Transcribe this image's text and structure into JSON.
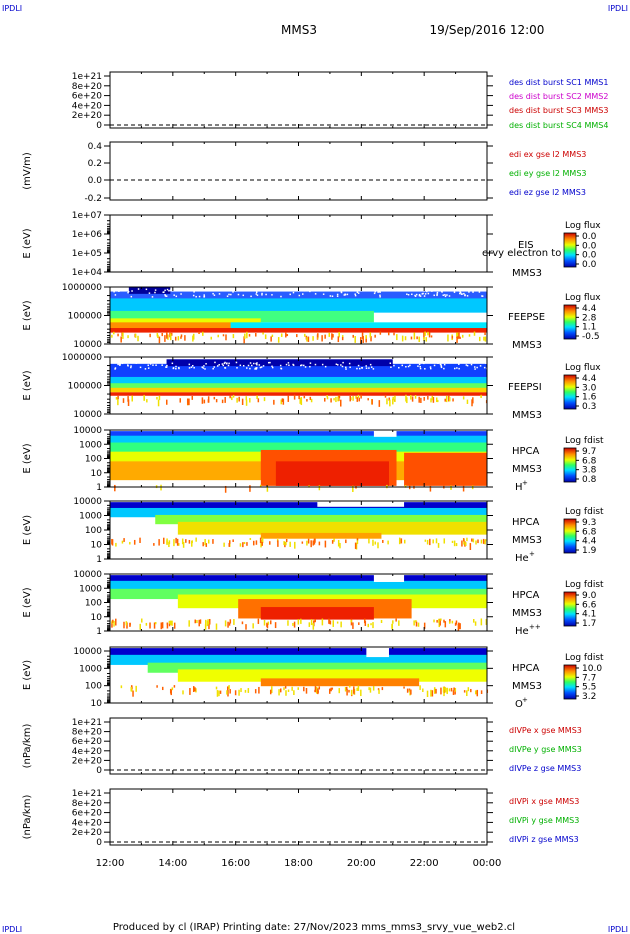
{
  "corners": {
    "tl": "IPDLI",
    "tr": "IPDLI",
    "bl": "IPDLI",
    "br": "IPDLI"
  },
  "header": {
    "mission": "MMS3",
    "datetime": "19/Sep/2016 12:00"
  },
  "footer": "Produced by cl (IRAP)   Printing date: 27/Nov/2023   mms_mms3_srvy_vue_web2.cl",
  "colors": {
    "red": "#cc0000",
    "green": "#00b000",
    "blue": "#0000cc",
    "magenta": "#cc00cc"
  },
  "chart_data": [
    {
      "type": "line",
      "panel": "des-dist",
      "ylabel": "",
      "ytick_labels": [
        "1e+21",
        "8e+20",
        "6e+20",
        "4e+20",
        "2e+20",
        "0"
      ],
      "ylim": [
        0,
        1.1e+21
      ],
      "legend": [
        {
          "text": "des dist burst SC1 MMS1",
          "color": "#0000cc"
        },
        {
          "text": "des dist burst SC2 MMS2",
          "color": "#cc00cc"
        },
        {
          "text": "des dist burst SC3 MMS3",
          "color": "#cc0000"
        },
        {
          "text": "des dist burst SC4 MMS4",
          "color": "#00b000"
        }
      ],
      "series": []
    },
    {
      "type": "line",
      "panel": "edi",
      "ylabel": "(mV/m)",
      "ytick_labels": [
        "0.4",
        "0.2",
        "0.0",
        "-0.2"
      ],
      "ylim": [
        -0.2,
        0.4
      ],
      "legend": [
        {
          "text": "edi ex gse l2 MMS3",
          "color": "#cc0000"
        },
        {
          "text": "edi ey gse l2 MMS3",
          "color": "#00b000"
        },
        {
          "text": "edi ez gse l2 MMS3",
          "color": "#0000cc"
        }
      ],
      "series": []
    },
    {
      "type": "heatmap",
      "panel": "eis",
      "ylabel": "E (eV)",
      "ytick_labels": [
        "1e+07",
        "1e+06",
        "1e+05",
        "1e+04"
      ],
      "yscale": "log",
      "instrument": "EIS",
      "sublabel": "MMS3",
      "overlay_text": "ervy electron to",
      "colorbar_title": "Log flux",
      "colorbar_ticks": [
        "0.0",
        "0.0",
        "0.0",
        "0.0"
      ],
      "fill": "empty"
    },
    {
      "type": "heatmap",
      "panel": "feeps-e",
      "ylabel": "E (eV)",
      "ytick_labels": [
        "1000000",
        "100000",
        "10000"
      ],
      "yscale": "log",
      "instrument": "FEEPSE",
      "sublabel": "MMS3",
      "colorbar_title": "Log flux",
      "colorbar_ticks": [
        "4.4",
        "2.8",
        "1.1",
        "-0.5"
      ],
      "fill": "feeps_e"
    },
    {
      "type": "heatmap",
      "panel": "feeps-i",
      "ylabel": "E (eV)",
      "ytick_labels": [
        "1000000",
        "100000",
        "10000"
      ],
      "yscale": "log",
      "instrument": "FEEPSI",
      "sublabel": "MMS3",
      "colorbar_title": "Log flux",
      "colorbar_ticks": [
        "4.4",
        "3.0",
        "1.6",
        "0.3"
      ],
      "fill": "feeps_i"
    },
    {
      "type": "heatmap",
      "panel": "hpca-h",
      "ylabel": "E (eV)",
      "ytick_labels": [
        "10000",
        "1000",
        "100",
        "10",
        "1"
      ],
      "yscale": "log",
      "instrument": "HPCA",
      "sublabel": "MMS3",
      "species": "H",
      "species_sup": "+",
      "colorbar_title": "Log fdist",
      "colorbar_ticks": [
        "9.7",
        "6.8",
        "3.8",
        "0.8"
      ],
      "fill": "hpca_h"
    },
    {
      "type": "heatmap",
      "panel": "hpca-he",
      "ylabel": "E (eV)",
      "ytick_labels": [
        "10000",
        "1000",
        "100",
        "10",
        "1"
      ],
      "yscale": "log",
      "instrument": "HPCA",
      "sublabel": "MMS3",
      "species": "He",
      "species_sup": "+",
      "colorbar_title": "Log fdist",
      "colorbar_ticks": [
        "9.3",
        "6.8",
        "4.4",
        "1.9"
      ],
      "fill": "hpca_he"
    },
    {
      "type": "heatmap",
      "panel": "hpca-hepp",
      "ylabel": "E (eV)",
      "ytick_labels": [
        "10000",
        "1000",
        "100",
        "10",
        "1"
      ],
      "yscale": "log",
      "instrument": "HPCA",
      "sublabel": "MMS3",
      "species": "He",
      "species_sup": "++",
      "colorbar_title": "Log fdist",
      "colorbar_ticks": [
        "9.0",
        "6.6",
        "4.1",
        "1.7"
      ],
      "fill": "hpca_hepp"
    },
    {
      "type": "heatmap",
      "panel": "hpca-o",
      "ylabel": "E (eV)",
      "ytick_labels": [
        "10000",
        "1000",
        "100",
        "10"
      ],
      "yscale": "log",
      "instrument": "HPCA",
      "sublabel": "MMS3",
      "species": "O",
      "species_sup": "+",
      "colorbar_title": "Log fdist",
      "colorbar_ticks": [
        "10.0",
        "7.7",
        "5.5",
        "3.2"
      ],
      "fill": "hpca_o"
    },
    {
      "type": "line",
      "panel": "divpe",
      "ylabel": "(nPa/km)",
      "ytick_labels": [
        "1e+21",
        "8e+20",
        "6e+20",
        "4e+20",
        "2e+20",
        "0"
      ],
      "ylim": [
        0,
        1.1e+21
      ],
      "legend": [
        {
          "text": "dIVPe x gse MMS3",
          "color": "#cc0000"
        },
        {
          "text": "dIVPe y gse MMS3",
          "color": "#00b000"
        },
        {
          "text": "dIVPe z gse MMS3",
          "color": "#0000cc"
        }
      ],
      "series": []
    },
    {
      "type": "line",
      "panel": "divpi",
      "ylabel": "(nPa/km)",
      "ytick_labels": [
        "1e+21",
        "8e+20",
        "6e+20",
        "4e+20",
        "2e+20",
        "0"
      ],
      "ylim": [
        0,
        1.1e+21
      ],
      "legend": [
        {
          "text": "dIVPi x gse MMS3",
          "color": "#cc0000"
        },
        {
          "text": "dIVPi y gse MMS3",
          "color": "#00b000"
        },
        {
          "text": "dIVPi z gse MMS3",
          "color": "#0000cc"
        }
      ],
      "series": []
    }
  ],
  "x_axis": {
    "tick_labels": [
      "12:00",
      "14:00",
      "16:00",
      "18:00",
      "20:00",
      "22:00",
      "00:00"
    ],
    "range": [
      "19/Sep/2016 12:00",
      "20/Sep/2016 00:00"
    ]
  }
}
